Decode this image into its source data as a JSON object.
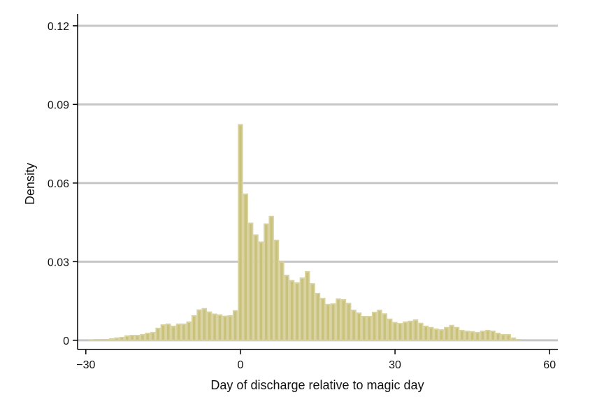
{
  "chart_data": {
    "type": "bar",
    "title": "",
    "xlabel": "Day of discharge relative to magic day",
    "ylabel": "Density",
    "xlim": [
      -31.6,
      61.6
    ],
    "ylim": [
      -0.0035,
      0.1245
    ],
    "xticks": [
      -30,
      0,
      30,
      60
    ],
    "xtick_labels": [
      "−30",
      "0",
      "30",
      "60"
    ],
    "yticks": [
      0,
      0.03,
      0.06,
      0.09,
      0.12
    ],
    "ytick_labels": [
      "0",
      "0.03",
      "0.06",
      "0.09",
      "0.12"
    ],
    "grid": "horizontal",
    "bar_width": 1,
    "colors": {
      "bar_fill": "#cac17b",
      "bar_edge": "#d7d29f",
      "grid": "#c6c6c6",
      "axis": "#000000"
    },
    "x": [
      -29,
      -28,
      -27,
      -26,
      -25,
      -24,
      -23,
      -22,
      -21,
      -20,
      -19,
      -18,
      -17,
      -16,
      -15,
      -14,
      -13,
      -12,
      -11,
      -10,
      -9,
      -8,
      -7,
      -6,
      -5,
      -4,
      -3,
      -2,
      -1,
      0,
      1,
      2,
      3,
      4,
      5,
      6,
      7,
      8,
      9,
      10,
      11,
      12,
      13,
      14,
      15,
      16,
      17,
      18,
      19,
      20,
      21,
      22,
      23,
      24,
      25,
      26,
      27,
      28,
      29,
      30,
      31,
      32,
      33,
      34,
      35,
      36,
      37,
      38,
      39,
      40,
      41,
      42,
      43,
      44,
      45,
      46,
      47,
      48,
      49,
      50,
      51,
      52,
      53,
      54
    ],
    "values": [
      0.0003,
      0.0005,
      0.0005,
      0.0005,
      0.0008,
      0.0011,
      0.0013,
      0.0019,
      0.0021,
      0.0021,
      0.0024,
      0.0029,
      0.0032,
      0.0048,
      0.0061,
      0.0064,
      0.0056,
      0.0064,
      0.0064,
      0.0072,
      0.0096,
      0.0118,
      0.0123,
      0.011,
      0.0102,
      0.0099,
      0.0094,
      0.0096,
      0.0115,
      0.0825,
      0.056,
      0.0449,
      0.0404,
      0.0377,
      0.0446,
      0.0475,
      0.0384,
      0.0302,
      0.025,
      0.023,
      0.0221,
      0.024,
      0.0264,
      0.0218,
      0.0181,
      0.0162,
      0.0139,
      0.0141,
      0.016,
      0.0157,
      0.0143,
      0.0117,
      0.0106,
      0.0093,
      0.0093,
      0.0109,
      0.0117,
      0.0103,
      0.0083,
      0.007,
      0.0066,
      0.0072,
      0.0075,
      0.008,
      0.0067,
      0.0056,
      0.0051,
      0.0045,
      0.0042,
      0.0051,
      0.0059,
      0.0051,
      0.004,
      0.0037,
      0.0035,
      0.0032,
      0.0037,
      0.004,
      0.0037,
      0.0029,
      0.0024,
      0.0024,
      0.0011,
      0.0005
    ]
  }
}
